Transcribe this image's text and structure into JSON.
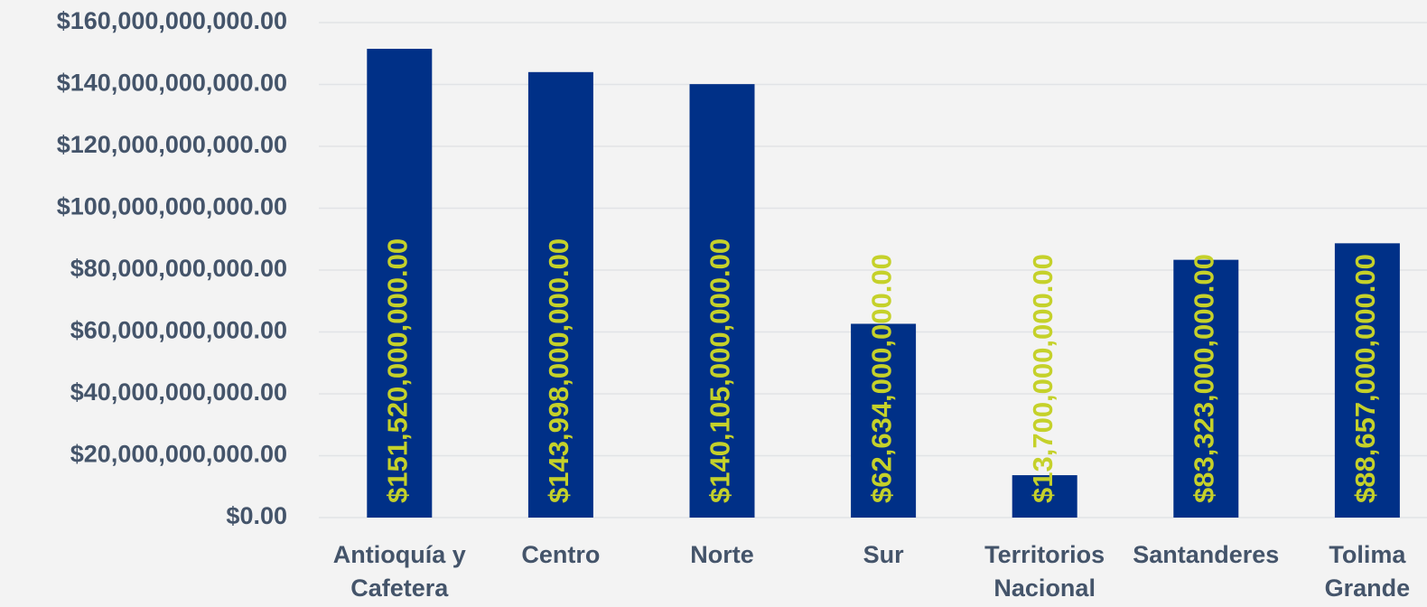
{
  "chart_data": {
    "type": "bar",
    "categories": [
      "Antioquía y Cafetera",
      "Centro",
      "Norte",
      "Sur",
      "Territorios Nacional",
      "Santanderes",
      "Tolima Grande"
    ],
    "values": [
      151520000000,
      143998000000,
      140105000000,
      62634000000,
      13700000000,
      83323000000,
      88657000000
    ],
    "value_labels": [
      "$151,520,000,000.00",
      "$143,998,000,000.00",
      "$140,105,000,000.00",
      "$62,634,000,000.00",
      "$13,700,000,000.00",
      "$83,323,000,000.00",
      "$88,657,000,000.00"
    ],
    "color": "#003087",
    "label_color": "#c5d12a",
    "ylim": [
      0,
      160000000000
    ],
    "yticks": [
      {
        "value": 0,
        "label": "$0.00"
      },
      {
        "value": 20000000000,
        "label": "$20,000,000,000.00"
      },
      {
        "value": 40000000000,
        "label": "$40,000,000,000.00"
      },
      {
        "value": 60000000000,
        "label": "$60,000,000,000.00"
      },
      {
        "value": 80000000000,
        "label": "$80,000,000,000.00"
      },
      {
        "value": 100000000000,
        "label": "$100,000,000,000.00"
      },
      {
        "value": 120000000000,
        "label": "$120,000,000,000.00"
      },
      {
        "value": 140000000000,
        "label": "$140,000,000,000.00"
      },
      {
        "value": 160000000000,
        "label": "$160,000,000,000.00"
      }
    ],
    "grid": true
  }
}
